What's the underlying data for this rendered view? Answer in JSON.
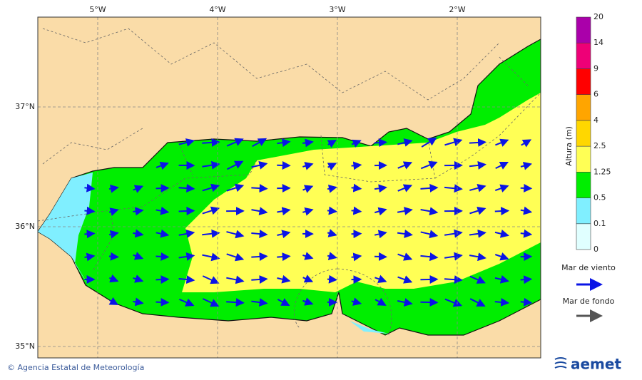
{
  "map": {
    "lon_labels": [
      "5°W",
      "4°W",
      "3°W",
      "2°W"
    ],
    "lat_labels": [
      "37°N",
      "36°N",
      "35°N"
    ],
    "colorbar": {
      "title": "Altura (m)",
      "labels": [
        "0",
        "0.1",
        "0.5",
        "1.25",
        "2.5",
        "4",
        "6",
        "9",
        "14",
        "20"
      ],
      "colors": [
        "#e0ffff",
        "#80efff",
        "#00ee00",
        "#ffff55",
        "#ffd700",
        "#ffa500",
        "#ff0000",
        "#ee0077",
        "#aa00aa"
      ]
    },
    "legend": {
      "wind_sea": "Mar de viento",
      "swell": "Mar de fondo"
    }
  },
  "footer": {
    "credit": "© Agencia Estatal de Meteorología",
    "logo": "aemet"
  }
}
